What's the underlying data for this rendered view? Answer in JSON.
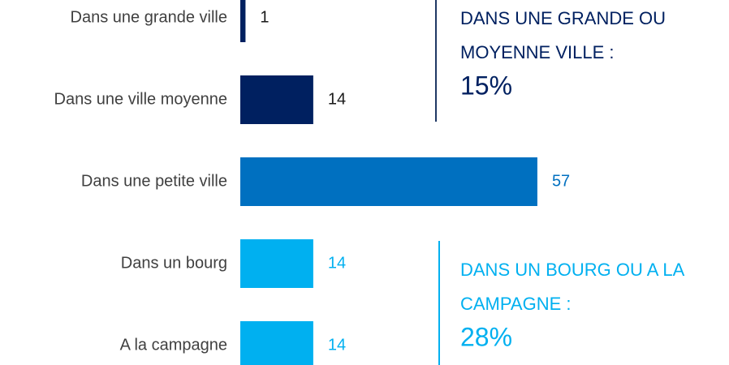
{
  "chart_data": {
    "type": "hbar",
    "categories": [
      "Dans une grande ville",
      "Dans une ville moyenne",
      "Dans une petite ville",
      "Dans un bourg",
      "A la campagne"
    ],
    "values": [
      1,
      14,
      57,
      14,
      14
    ],
    "colors": [
      "#002060",
      "#002060",
      "#0070c0",
      "#00b0f0",
      "#00b0f0"
    ],
    "annotations": [
      {
        "lines": [
          "DANS UNE GRANDE OU",
          "MOYENNE VILLE :"
        ],
        "figure": "15%",
        "color": "#002060"
      },
      {
        "lines": [
          "DANS UN BOURG OU A LA",
          "CAMPAGNE :"
        ],
        "figure": "28%",
        "color": "#00b0f0"
      }
    ]
  }
}
